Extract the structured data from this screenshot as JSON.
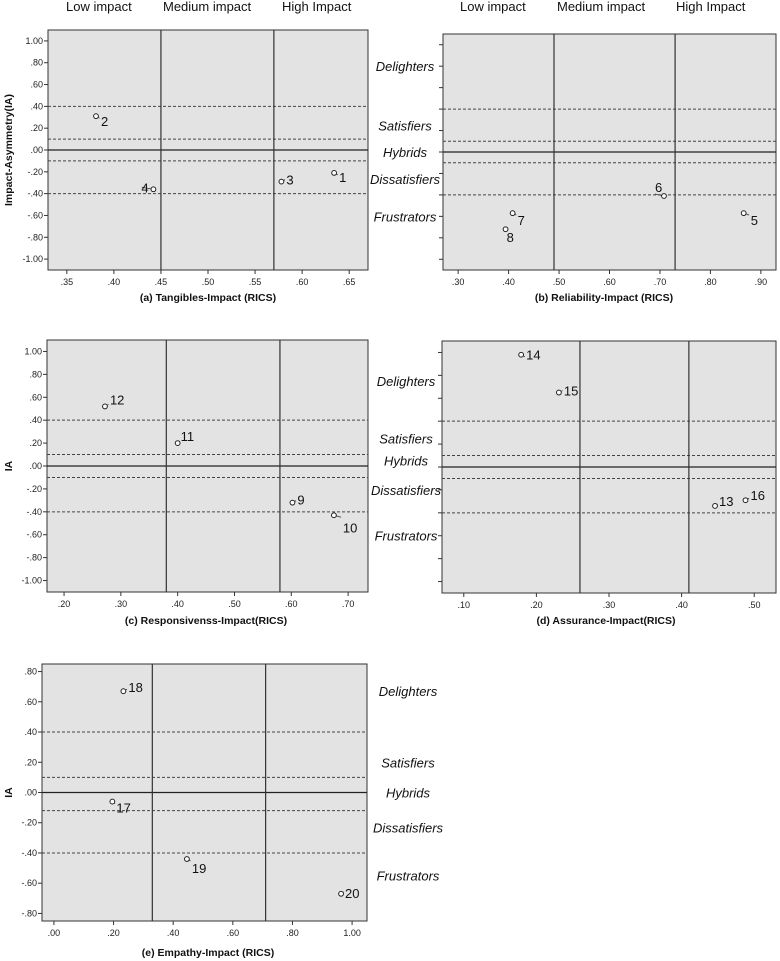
{
  "chart_data": [
    {
      "type": "scatter",
      "xlabel": "(a) Tangibles-Impact (RICS)",
      "ylabel": "Impact-Asymmetry(IA)",
      "xlim": [
        0.33,
        0.67
      ],
      "ylim": [
        -1.1,
        1.1
      ],
      "xticks": [
        0.35,
        0.4,
        0.45,
        0.5,
        0.55,
        0.6,
        0.65
      ],
      "xtick_labels": [
        ".35",
        ".40",
        ".45",
        ".50",
        ".55",
        ".60",
        ".65"
      ],
      "yticks": [
        1.0,
        0.8,
        0.6,
        0.4,
        0.2,
        0.0,
        -0.2,
        -0.4,
        -0.6,
        -0.8,
        -1.0
      ],
      "ytick_labels": [
        "1.00",
        ".80",
        ".60",
        ".40",
        ".20",
        ".00",
        "-.20",
        "-.40",
        "-.60",
        "-.80",
        "-1.00"
      ],
      "vlines": [
        0.45,
        0.57
      ],
      "hlines_solid": [
        0.0
      ],
      "hlines_dashed": [
        0.4,
        0.1,
        -0.1,
        -0.4
      ],
      "band_labels": [
        "Low impact",
        "Medium impact",
        "High Impact"
      ],
      "zone_labels": [],
      "points": [
        {
          "label": "2",
          "x": 0.381,
          "y": 0.31
        },
        {
          "label": "4",
          "x": 0.442,
          "y": -0.36
        },
        {
          "label": "3",
          "x": 0.578,
          "y": -0.29
        },
        {
          "label": "1",
          "x": 0.634,
          "y": -0.21
        }
      ]
    },
    {
      "type": "scatter",
      "xlabel": "(b) Reliability-Impact (RICS)",
      "ylabel": "",
      "xlim": [
        0.27,
        0.93
      ],
      "ylim": [
        -1.1,
        1.1
      ],
      "xticks": [
        0.3,
        0.4,
        0.5,
        0.6,
        0.7,
        0.8,
        0.9
      ],
      "xtick_labels": [
        ".30",
        ".40",
        ".50",
        ".60",
        ".70",
        ".80",
        ".90"
      ],
      "yticks": [],
      "ytick_labels": [],
      "vlines": [
        0.49,
        0.73
      ],
      "hlines_solid": [
        0.0
      ],
      "hlines_dashed": [
        0.4,
        0.1,
        -0.1,
        -0.4
      ],
      "band_labels": [
        "Low impact",
        "Medium impact",
        "High Impact"
      ],
      "zone_labels": [
        "Delighters",
        "Satisfiers",
        "Hybrids",
        "Dissatisfiers",
        "Frustrators"
      ],
      "points": [
        {
          "label": "7",
          "x": 0.408,
          "y": -0.57
        },
        {
          "label": "8",
          "x": 0.394,
          "y": -0.72
        },
        {
          "label": "6",
          "x": 0.708,
          "y": -0.41
        },
        {
          "label": "5",
          "x": 0.866,
          "y": -0.57
        }
      ]
    },
    {
      "type": "scatter",
      "xlabel": "(c) Responsivenss-Impact(RICS)",
      "ylabel": "IA",
      "xlim": [
        0.17,
        0.735
      ],
      "ylim": [
        -1.1,
        1.1
      ],
      "xticks": [
        0.2,
        0.3,
        0.4,
        0.5,
        0.6,
        0.7
      ],
      "xtick_labels": [
        ".20",
        ".30",
        ".40",
        ".50",
        ".60",
        ".70"
      ],
      "yticks": [
        1.0,
        0.8,
        0.6,
        0.4,
        0.2,
        0.0,
        -0.2,
        -0.4,
        -0.6,
        -0.8,
        -1.0
      ],
      "ytick_labels": [
        "1.00",
        ".80",
        ".60",
        ".40",
        ".20",
        ".00",
        "-.20",
        "-.40",
        "-.60",
        "-.80",
        "-1.00"
      ],
      "vlines": [
        0.38,
        0.58
      ],
      "hlines_solid": [
        0.0
      ],
      "hlines_dashed": [
        0.4,
        0.1,
        -0.1,
        -0.4
      ],
      "band_labels": [],
      "zone_labels": [],
      "points": [
        {
          "label": "12",
          "x": 0.272,
          "y": 0.52
        },
        {
          "label": "11",
          "x": 0.4,
          "y": 0.2
        },
        {
          "label": "9",
          "x": 0.602,
          "y": -0.32
        },
        {
          "label": "10",
          "x": 0.675,
          "y": -0.43
        }
      ]
    },
    {
      "type": "scatter",
      "xlabel": "(d) Assurance-Impact(RICS)",
      "ylabel": "",
      "xlim": [
        0.07,
        0.53
      ],
      "ylim": [
        -1.1,
        1.1
      ],
      "xticks": [
        0.1,
        0.2,
        0.3,
        0.4,
        0.5
      ],
      "xtick_labels": [
        ".10",
        ".20",
        ".30",
        ".40",
        ".50"
      ],
      "yticks": [],
      "ytick_labels": [],
      "vlines": [
        0.26,
        0.41
      ],
      "hlines_solid": [
        0.0
      ],
      "hlines_dashed": [
        0.4,
        0.1,
        -0.1,
        -0.4
      ],
      "band_labels": [],
      "zone_labels": [
        "Delighters",
        "Satisfiers",
        "Hybrids",
        "Dissatisfiers",
        "Frustrators"
      ],
      "points": [
        {
          "label": "14",
          "x": 0.179,
          "y": 0.98
        },
        {
          "label": "15",
          "x": 0.231,
          "y": 0.65
        },
        {
          "label": "13",
          "x": 0.446,
          "y": -0.34
        },
        {
          "label": "16",
          "x": 0.488,
          "y": -0.29
        }
      ]
    },
    {
      "type": "scatter",
      "xlabel": "(e) Empathy-Impact (RICS)",
      "ylabel": "IA",
      "xlim": [
        -0.04,
        1.05
      ],
      "ylim": [
        -0.85,
        0.85
      ],
      "xticks": [
        0.0,
        0.2,
        0.4,
        0.6,
        0.8,
        1.0
      ],
      "xtick_labels": [
        ".00",
        ".20",
        ".40",
        ".60",
        ".80",
        "1.00"
      ],
      "yticks": [
        0.8,
        0.6,
        0.4,
        0.2,
        0.0,
        -0.2,
        -0.4,
        -0.6,
        -0.8
      ],
      "ytick_labels": [
        ".80",
        ".60",
        ".40",
        ".20",
        ".00",
        "-.20",
        "-.40",
        "-.60",
        "-.80"
      ],
      "vlines": [
        0.33,
        0.71
      ],
      "hlines_solid": [
        0.0
      ],
      "hlines_dashed": [
        0.4,
        0.1,
        -0.12,
        -0.4
      ],
      "band_labels": [],
      "zone_labels": [
        "Delighters",
        "Satisfiers",
        "Hybrids",
        "Dissatisfiers",
        "Frustrators"
      ],
      "points": [
        {
          "label": "18",
          "x": 0.233,
          "y": 0.67
        },
        {
          "label": "17",
          "x": 0.196,
          "y": -0.06
        },
        {
          "label": "19",
          "x": 0.446,
          "y": -0.44
        },
        {
          "label": "20",
          "x": 0.963,
          "y": -0.67
        }
      ]
    }
  ]
}
